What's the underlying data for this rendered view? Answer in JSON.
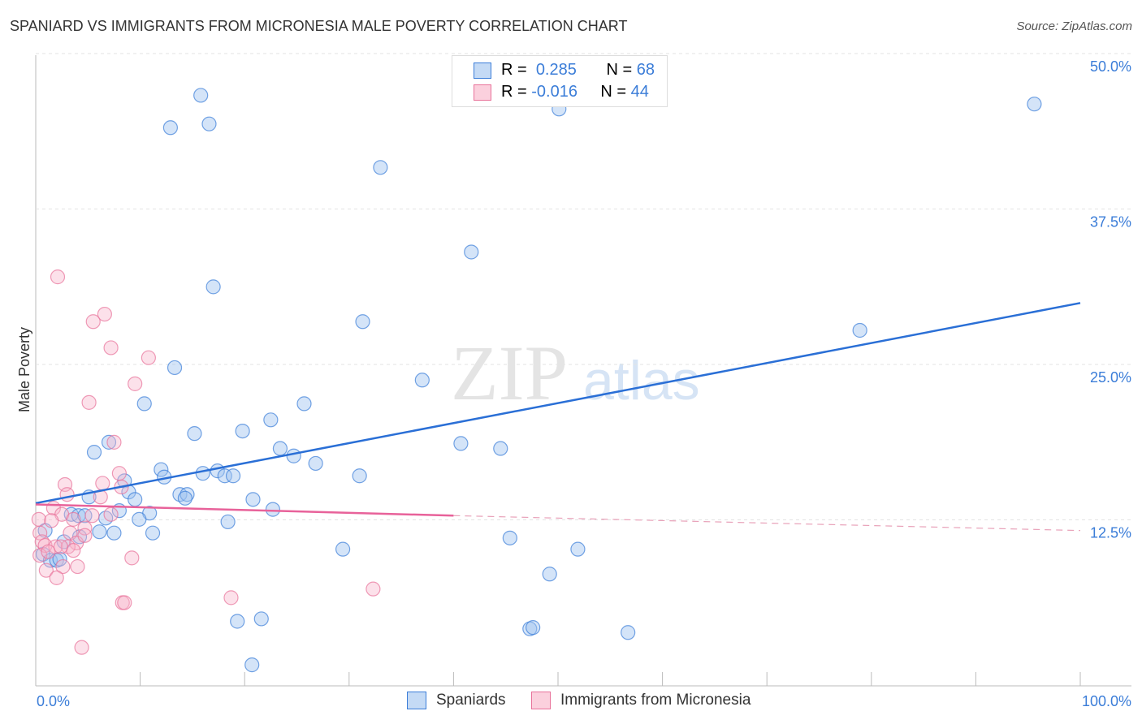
{
  "title": "SPANIARD VS IMMIGRANTS FROM MICRONESIA MALE POVERTY CORRELATION CHART",
  "source": "Source: ZipAtlas.com",
  "chart_data": {
    "type": "scatter",
    "ylabel": "Male Poverty",
    "xlim": [
      0,
      100
    ],
    "ylim": [
      0,
      50
    ],
    "x_tick_labels": [
      "0.0%",
      "100.0%"
    ],
    "y_ticks": [
      12.5,
      25,
      37.5,
      50
    ],
    "y_tick_labels": [
      "12.5%",
      "25.0%",
      "37.5%",
      "50.0%"
    ],
    "legend": [
      {
        "name": "Spaniards",
        "R": "0.285",
        "N": "68",
        "color": "#3b7dd8"
      },
      {
        "name": "Immigrants from Micronesia",
        "R": "-0.016",
        "N": "44",
        "color": "#e8729a"
      }
    ],
    "series": [
      {
        "name": "Spaniards",
        "color": "#3b7dd8",
        "trend": [
          [
            0,
            15.8
          ],
          [
            100,
            31.9
          ]
        ],
        "points": [
          [
            15.8,
            48.6
          ],
          [
            12.9,
            46.0
          ],
          [
            16.6,
            46.3
          ],
          [
            50.1,
            47.5
          ],
          [
            95.6,
            47.9
          ],
          [
            33.0,
            42.8
          ],
          [
            41.7,
            36.0
          ],
          [
            17.0,
            33.2
          ],
          [
            31.3,
            30.4
          ],
          [
            78.9,
            29.7
          ],
          [
            13.3,
            26.7
          ],
          [
            37.0,
            25.7
          ],
          [
            10.4,
            23.8
          ],
          [
            25.7,
            23.8
          ],
          [
            22.5,
            22.5
          ],
          [
            19.8,
            21.6
          ],
          [
            15.2,
            21.4
          ],
          [
            7.0,
            20.7
          ],
          [
            5.6,
            19.9
          ],
          [
            23.4,
            20.2
          ],
          [
            40.7,
            20.6
          ],
          [
            44.5,
            20.2
          ],
          [
            24.7,
            19.6
          ],
          [
            26.8,
            19.0
          ],
          [
            12.0,
            18.5
          ],
          [
            16.0,
            18.2
          ],
          [
            17.4,
            18.4
          ],
          [
            18.1,
            18.0
          ],
          [
            18.9,
            18.0
          ],
          [
            12.3,
            17.9
          ],
          [
            31.0,
            18.0
          ],
          [
            8.5,
            17.6
          ],
          [
            8.9,
            16.7
          ],
          [
            13.8,
            16.5
          ],
          [
            14.5,
            16.5
          ],
          [
            14.3,
            16.2
          ],
          [
            20.8,
            16.1
          ],
          [
            9.5,
            16.1
          ],
          [
            5.1,
            16.3
          ],
          [
            8.0,
            15.2
          ],
          [
            22.7,
            15.3
          ],
          [
            10.9,
            15.0
          ],
          [
            3.4,
            14.9
          ],
          [
            4.1,
            14.8
          ],
          [
            4.7,
            14.8
          ],
          [
            6.7,
            14.6
          ],
          [
            9.9,
            14.5
          ],
          [
            18.4,
            14.3
          ],
          [
            6.1,
            13.5
          ],
          [
            7.5,
            13.4
          ],
          [
            11.2,
            13.4
          ],
          [
            0.9,
            13.6
          ],
          [
            4.2,
            13.1
          ],
          [
            2.7,
            12.7
          ],
          [
            45.4,
            13.0
          ],
          [
            29.4,
            12.1
          ],
          [
            51.9,
            12.1
          ],
          [
            0.7,
            11.7
          ],
          [
            1.4,
            11.2
          ],
          [
            2.0,
            11.2
          ],
          [
            2.3,
            11.3
          ],
          [
            49.2,
            10.1
          ],
          [
            19.3,
            6.3
          ],
          [
            21.6,
            6.5
          ],
          [
            47.3,
            5.7
          ],
          [
            47.6,
            5.8
          ],
          [
            56.7,
            5.4
          ],
          [
            20.7,
            2.8
          ]
        ]
      },
      {
        "name": "Immigrants from Micronesia",
        "color": "#e8729a",
        "trend": [
          [
            0,
            15.7
          ],
          [
            40,
            14.8
          ],
          [
            100,
            13.6
          ]
        ],
        "points": [
          [
            2.1,
            34.0
          ],
          [
            6.6,
            31.0
          ],
          [
            5.5,
            30.4
          ],
          [
            7.2,
            28.3
          ],
          [
            10.8,
            27.5
          ],
          [
            9.5,
            25.4
          ],
          [
            5.1,
            23.9
          ],
          [
            7.5,
            20.7
          ],
          [
            8.0,
            18.2
          ],
          [
            2.8,
            17.3
          ],
          [
            6.4,
            17.4
          ],
          [
            8.2,
            17.1
          ],
          [
            3.0,
            16.5
          ],
          [
            6.2,
            16.3
          ],
          [
            1.7,
            15.4
          ],
          [
            2.5,
            14.9
          ],
          [
            7.2,
            14.9
          ],
          [
            5.4,
            14.8
          ],
          [
            0.3,
            14.5
          ],
          [
            1.5,
            14.4
          ],
          [
            3.6,
            14.5
          ],
          [
            4.7,
            13.8
          ],
          [
            3.3,
            13.4
          ],
          [
            0.4,
            13.4
          ],
          [
            0.6,
            12.7
          ],
          [
            0.9,
            12.4
          ],
          [
            3.9,
            12.6
          ],
          [
            1.9,
            12.3
          ],
          [
            3.1,
            12.3
          ],
          [
            3.6,
            12.0
          ],
          [
            0.4,
            11.6
          ],
          [
            9.2,
            11.4
          ],
          [
            2.6,
            10.7
          ],
          [
            4.0,
            10.7
          ],
          [
            1.0,
            10.4
          ],
          [
            2.0,
            9.8
          ],
          [
            32.3,
            8.9
          ],
          [
            18.7,
            8.2
          ],
          [
            8.3,
            7.8
          ],
          [
            8.5,
            7.8
          ],
          [
            4.4,
            4.2
          ],
          [
            1.2,
            11.9
          ],
          [
            2.4,
            12.3
          ],
          [
            4.7,
            13.2
          ]
        ]
      }
    ]
  },
  "legend_labels": {
    "r": "R =",
    "n": "N ="
  }
}
